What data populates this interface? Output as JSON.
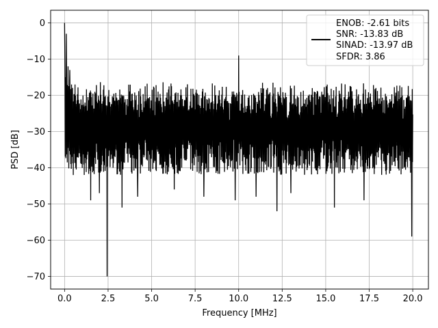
{
  "chart_data": {
    "type": "line",
    "xlabel": "Frequency [MHz]",
    "ylabel": "PSD [dB]",
    "xlim": [
      -0.8,
      20.9
    ],
    "ylim": [
      -73.5,
      3.5
    ],
    "xticks": [
      0.0,
      2.5,
      5.0,
      7.5,
      10.0,
      12.5,
      15.0,
      17.5,
      20.0
    ],
    "xtick_labels": [
      "0.0",
      "2.5",
      "5.0",
      "7.5",
      "10.0",
      "12.5",
      "15.0",
      "17.5",
      "20.0"
    ],
    "yticks": [
      0,
      -10,
      -20,
      -30,
      -40,
      -50,
      -60,
      -70
    ],
    "ytick_labels": [
      "0",
      "−10",
      "−20",
      "−30",
      "−40",
      "−50",
      "−60",
      "−70"
    ],
    "grid": true,
    "legend_position": "top-right",
    "series": [
      {
        "legend_lines": [
          "ENOB: -2.61 bits",
          "SNR: -13.83 dB",
          "SINAD: -13.97 dB",
          "SFDR: 3.86"
        ],
        "color": "#000000",
        "noise_floor": {
          "x_range": [
            0.0,
            20.0
          ],
          "upper_envelope_db": -18,
          "lower_envelope_db": -38,
          "mean_db": -27
        },
        "peaks": [
          {
            "x": 0.0,
            "y": 0.0
          },
          {
            "x": 0.02,
            "y": -8
          },
          {
            "x": 0.05,
            "y": -15
          },
          {
            "x": 0.1,
            "y": -3
          },
          {
            "x": 0.2,
            "y": -12
          },
          {
            "x": 0.3,
            "y": -13
          },
          {
            "x": 0.4,
            "y": -17
          },
          {
            "x": 0.6,
            "y": -17
          },
          {
            "x": 10.0,
            "y": -9
          }
        ],
        "dips": [
          {
            "x": 0.5,
            "y": -42
          },
          {
            "x": 1.5,
            "y": -49
          },
          {
            "x": 2.0,
            "y": -47
          },
          {
            "x": 2.45,
            "y": -70
          },
          {
            "x": 3.3,
            "y": -51
          },
          {
            "x": 4.2,
            "y": -48
          },
          {
            "x": 6.3,
            "y": -46
          },
          {
            "x": 8.0,
            "y": -48
          },
          {
            "x": 9.8,
            "y": -49
          },
          {
            "x": 11.0,
            "y": -48
          },
          {
            "x": 12.2,
            "y": -52
          },
          {
            "x": 13.0,
            "y": -47
          },
          {
            "x": 15.5,
            "y": -51
          },
          {
            "x": 17.2,
            "y": -49
          },
          {
            "x": 19.95,
            "y": -59
          }
        ]
      }
    ]
  }
}
